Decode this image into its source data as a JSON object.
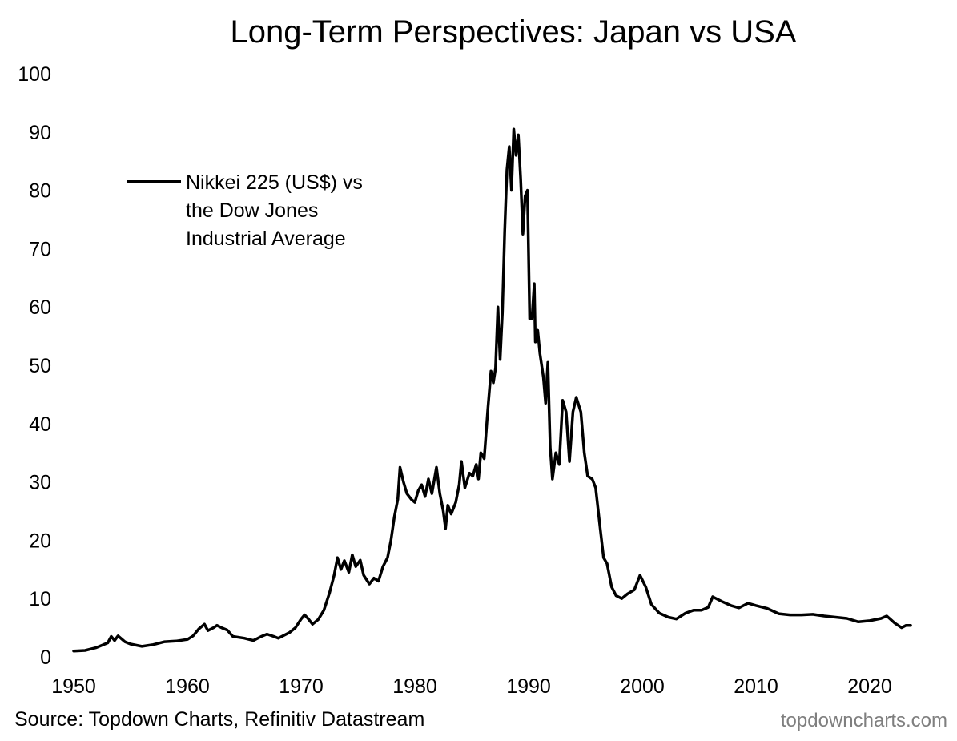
{
  "chart_data": {
    "type": "line",
    "title": "Long-Term Perspectives: Japan vs USA",
    "xlabel": "",
    "ylabel": "",
    "xlim": [
      1950,
      2023.6
    ],
    "ylim": [
      0,
      100
    ],
    "x_ticks": [
      1950,
      1960,
      1970,
      1980,
      1990,
      2000,
      2010,
      2020
    ],
    "y_ticks": [
      0,
      10,
      20,
      30,
      40,
      50,
      60,
      70,
      80,
      90,
      100
    ],
    "grid": false,
    "legend_position": "top-left",
    "series": [
      {
        "name": "Nikkei 225 (US$) vs the Dow Jones Industrial Average",
        "legend_lines": [
          "Nikkei 225 (US$) vs",
          "the Dow Jones",
          "Industrial Average"
        ],
        "color": "#000000",
        "points": [
          [
            1950.0,
            1.0
          ],
          [
            1951.0,
            1.1
          ],
          [
            1952.0,
            1.6
          ],
          [
            1953.0,
            2.4
          ],
          [
            1953.3,
            3.5
          ],
          [
            1953.6,
            2.8
          ],
          [
            1953.9,
            3.6
          ],
          [
            1954.5,
            2.6
          ],
          [
            1955.0,
            2.2
          ],
          [
            1956.0,
            1.8
          ],
          [
            1957.0,
            2.1
          ],
          [
            1958.0,
            2.6
          ],
          [
            1959.0,
            2.7
          ],
          [
            1960.0,
            3.0
          ],
          [
            1960.5,
            3.6
          ],
          [
            1961.0,
            4.8
          ],
          [
            1961.5,
            5.6
          ],
          [
            1961.8,
            4.5
          ],
          [
            1962.3,
            5.0
          ],
          [
            1962.6,
            5.4
          ],
          [
            1963.0,
            5.0
          ],
          [
            1963.5,
            4.6
          ],
          [
            1964.0,
            3.5
          ],
          [
            1965.0,
            3.2
          ],
          [
            1965.8,
            2.8
          ],
          [
            1966.5,
            3.5
          ],
          [
            1967.0,
            3.9
          ],
          [
            1967.6,
            3.5
          ],
          [
            1968.0,
            3.2
          ],
          [
            1968.5,
            3.7
          ],
          [
            1969.0,
            4.2
          ],
          [
            1969.5,
            5.0
          ],
          [
            1970.0,
            6.5
          ],
          [
            1970.3,
            7.2
          ],
          [
            1970.6,
            6.6
          ],
          [
            1971.0,
            5.6
          ],
          [
            1971.5,
            6.4
          ],
          [
            1972.0,
            8.0
          ],
          [
            1972.5,
            11.0
          ],
          [
            1972.9,
            14.0
          ],
          [
            1973.2,
            17.0
          ],
          [
            1973.5,
            15.0
          ],
          [
            1973.8,
            16.5
          ],
          [
            1974.2,
            14.5
          ],
          [
            1974.5,
            17.5
          ],
          [
            1974.8,
            15.5
          ],
          [
            1975.2,
            16.6
          ],
          [
            1975.5,
            14.0
          ],
          [
            1976.0,
            12.5
          ],
          [
            1976.4,
            13.5
          ],
          [
            1976.8,
            13.0
          ],
          [
            1977.2,
            15.5
          ],
          [
            1977.6,
            17.0
          ],
          [
            1977.9,
            20.0
          ],
          [
            1978.2,
            24.0
          ],
          [
            1978.5,
            27.0
          ],
          [
            1978.7,
            32.5
          ],
          [
            1979.0,
            30.0
          ],
          [
            1979.3,
            28.0
          ],
          [
            1979.7,
            27.0
          ],
          [
            1980.0,
            26.5
          ],
          [
            1980.3,
            28.5
          ],
          [
            1980.6,
            29.5
          ],
          [
            1980.9,
            27.5
          ],
          [
            1981.2,
            30.5
          ],
          [
            1981.5,
            28.0
          ],
          [
            1981.9,
            32.5
          ],
          [
            1982.2,
            28.0
          ],
          [
            1982.5,
            25.0
          ],
          [
            1982.7,
            22.0
          ],
          [
            1982.9,
            26.0
          ],
          [
            1983.2,
            24.5
          ],
          [
            1983.6,
            26.5
          ],
          [
            1983.9,
            29.5
          ],
          [
            1984.1,
            33.5
          ],
          [
            1984.4,
            29.0
          ],
          [
            1984.8,
            31.5
          ],
          [
            1985.1,
            31.0
          ],
          [
            1985.4,
            33.0
          ],
          [
            1985.6,
            30.5
          ],
          [
            1985.8,
            35.0
          ],
          [
            1986.1,
            34.0
          ],
          [
            1986.4,
            42.0
          ],
          [
            1986.7,
            49.0
          ],
          [
            1986.9,
            47.0
          ],
          [
            1987.1,
            49.5
          ],
          [
            1987.3,
            60.0
          ],
          [
            1987.5,
            51.0
          ],
          [
            1987.7,
            59.0
          ],
          [
            1987.9,
            73.0
          ],
          [
            1988.1,
            83.5
          ],
          [
            1988.3,
            87.5
          ],
          [
            1988.5,
            80.0
          ],
          [
            1988.7,
            90.5
          ],
          [
            1988.9,
            86.0
          ],
          [
            1989.1,
            89.5
          ],
          [
            1989.3,
            82.0
          ],
          [
            1989.5,
            72.5
          ],
          [
            1989.7,
            79.0
          ],
          [
            1989.9,
            80.0
          ],
          [
            1990.1,
            58.0
          ],
          [
            1990.3,
            58.0
          ],
          [
            1990.5,
            64.0
          ],
          [
            1990.6,
            54.0
          ],
          [
            1990.8,
            56.0
          ],
          [
            1991.0,
            52.0
          ],
          [
            1991.3,
            48.0
          ],
          [
            1991.5,
            43.5
          ],
          [
            1991.7,
            50.5
          ],
          [
            1991.9,
            36.0
          ],
          [
            1992.1,
            30.5
          ],
          [
            1992.4,
            35.0
          ],
          [
            1992.7,
            33.0
          ],
          [
            1993.0,
            44.0
          ],
          [
            1993.3,
            42.0
          ],
          [
            1993.6,
            33.5
          ],
          [
            1993.9,
            42.0
          ],
          [
            1994.2,
            44.5
          ],
          [
            1994.6,
            42.0
          ],
          [
            1994.9,
            35.0
          ],
          [
            1995.2,
            31.0
          ],
          [
            1995.6,
            30.5
          ],
          [
            1995.9,
            29.0
          ],
          [
            1996.3,
            22.0
          ],
          [
            1996.6,
            17.0
          ],
          [
            1996.9,
            16.0
          ],
          [
            1997.3,
            12.0
          ],
          [
            1997.7,
            10.5
          ],
          [
            1998.2,
            10.0
          ],
          [
            1998.7,
            10.8
          ],
          [
            1999.3,
            11.5
          ],
          [
            1999.8,
            14.0
          ],
          [
            2000.3,
            12.0
          ],
          [
            2000.8,
            9.0
          ],
          [
            2001.5,
            7.5
          ],
          [
            2002.3,
            6.8
          ],
          [
            2003.0,
            6.5
          ],
          [
            2003.8,
            7.5
          ],
          [
            2004.5,
            8.0
          ],
          [
            2005.2,
            8.0
          ],
          [
            2005.8,
            8.5
          ],
          [
            2006.2,
            10.3
          ],
          [
            2007.0,
            9.5
          ],
          [
            2007.8,
            8.8
          ],
          [
            2008.5,
            8.4
          ],
          [
            2009.3,
            9.2
          ],
          [
            2010.0,
            8.8
          ],
          [
            2011.0,
            8.3
          ],
          [
            2012.0,
            7.4
          ],
          [
            2013.0,
            7.2
          ],
          [
            2014.0,
            7.2
          ],
          [
            2015.0,
            7.3
          ],
          [
            2016.0,
            7.0
          ],
          [
            2017.0,
            6.8
          ],
          [
            2018.0,
            6.6
          ],
          [
            2019.0,
            6.0
          ],
          [
            2020.0,
            6.2
          ],
          [
            2021.0,
            6.6
          ],
          [
            2021.5,
            7.0
          ],
          [
            2022.2,
            5.8
          ],
          [
            2022.8,
            5.0
          ],
          [
            2023.2,
            5.4
          ],
          [
            2023.6,
            5.4
          ]
        ]
      }
    ]
  },
  "footer": {
    "source": "Source: Topdown Charts, Refinitiv Datastream",
    "brand": "topdowncharts.com"
  }
}
